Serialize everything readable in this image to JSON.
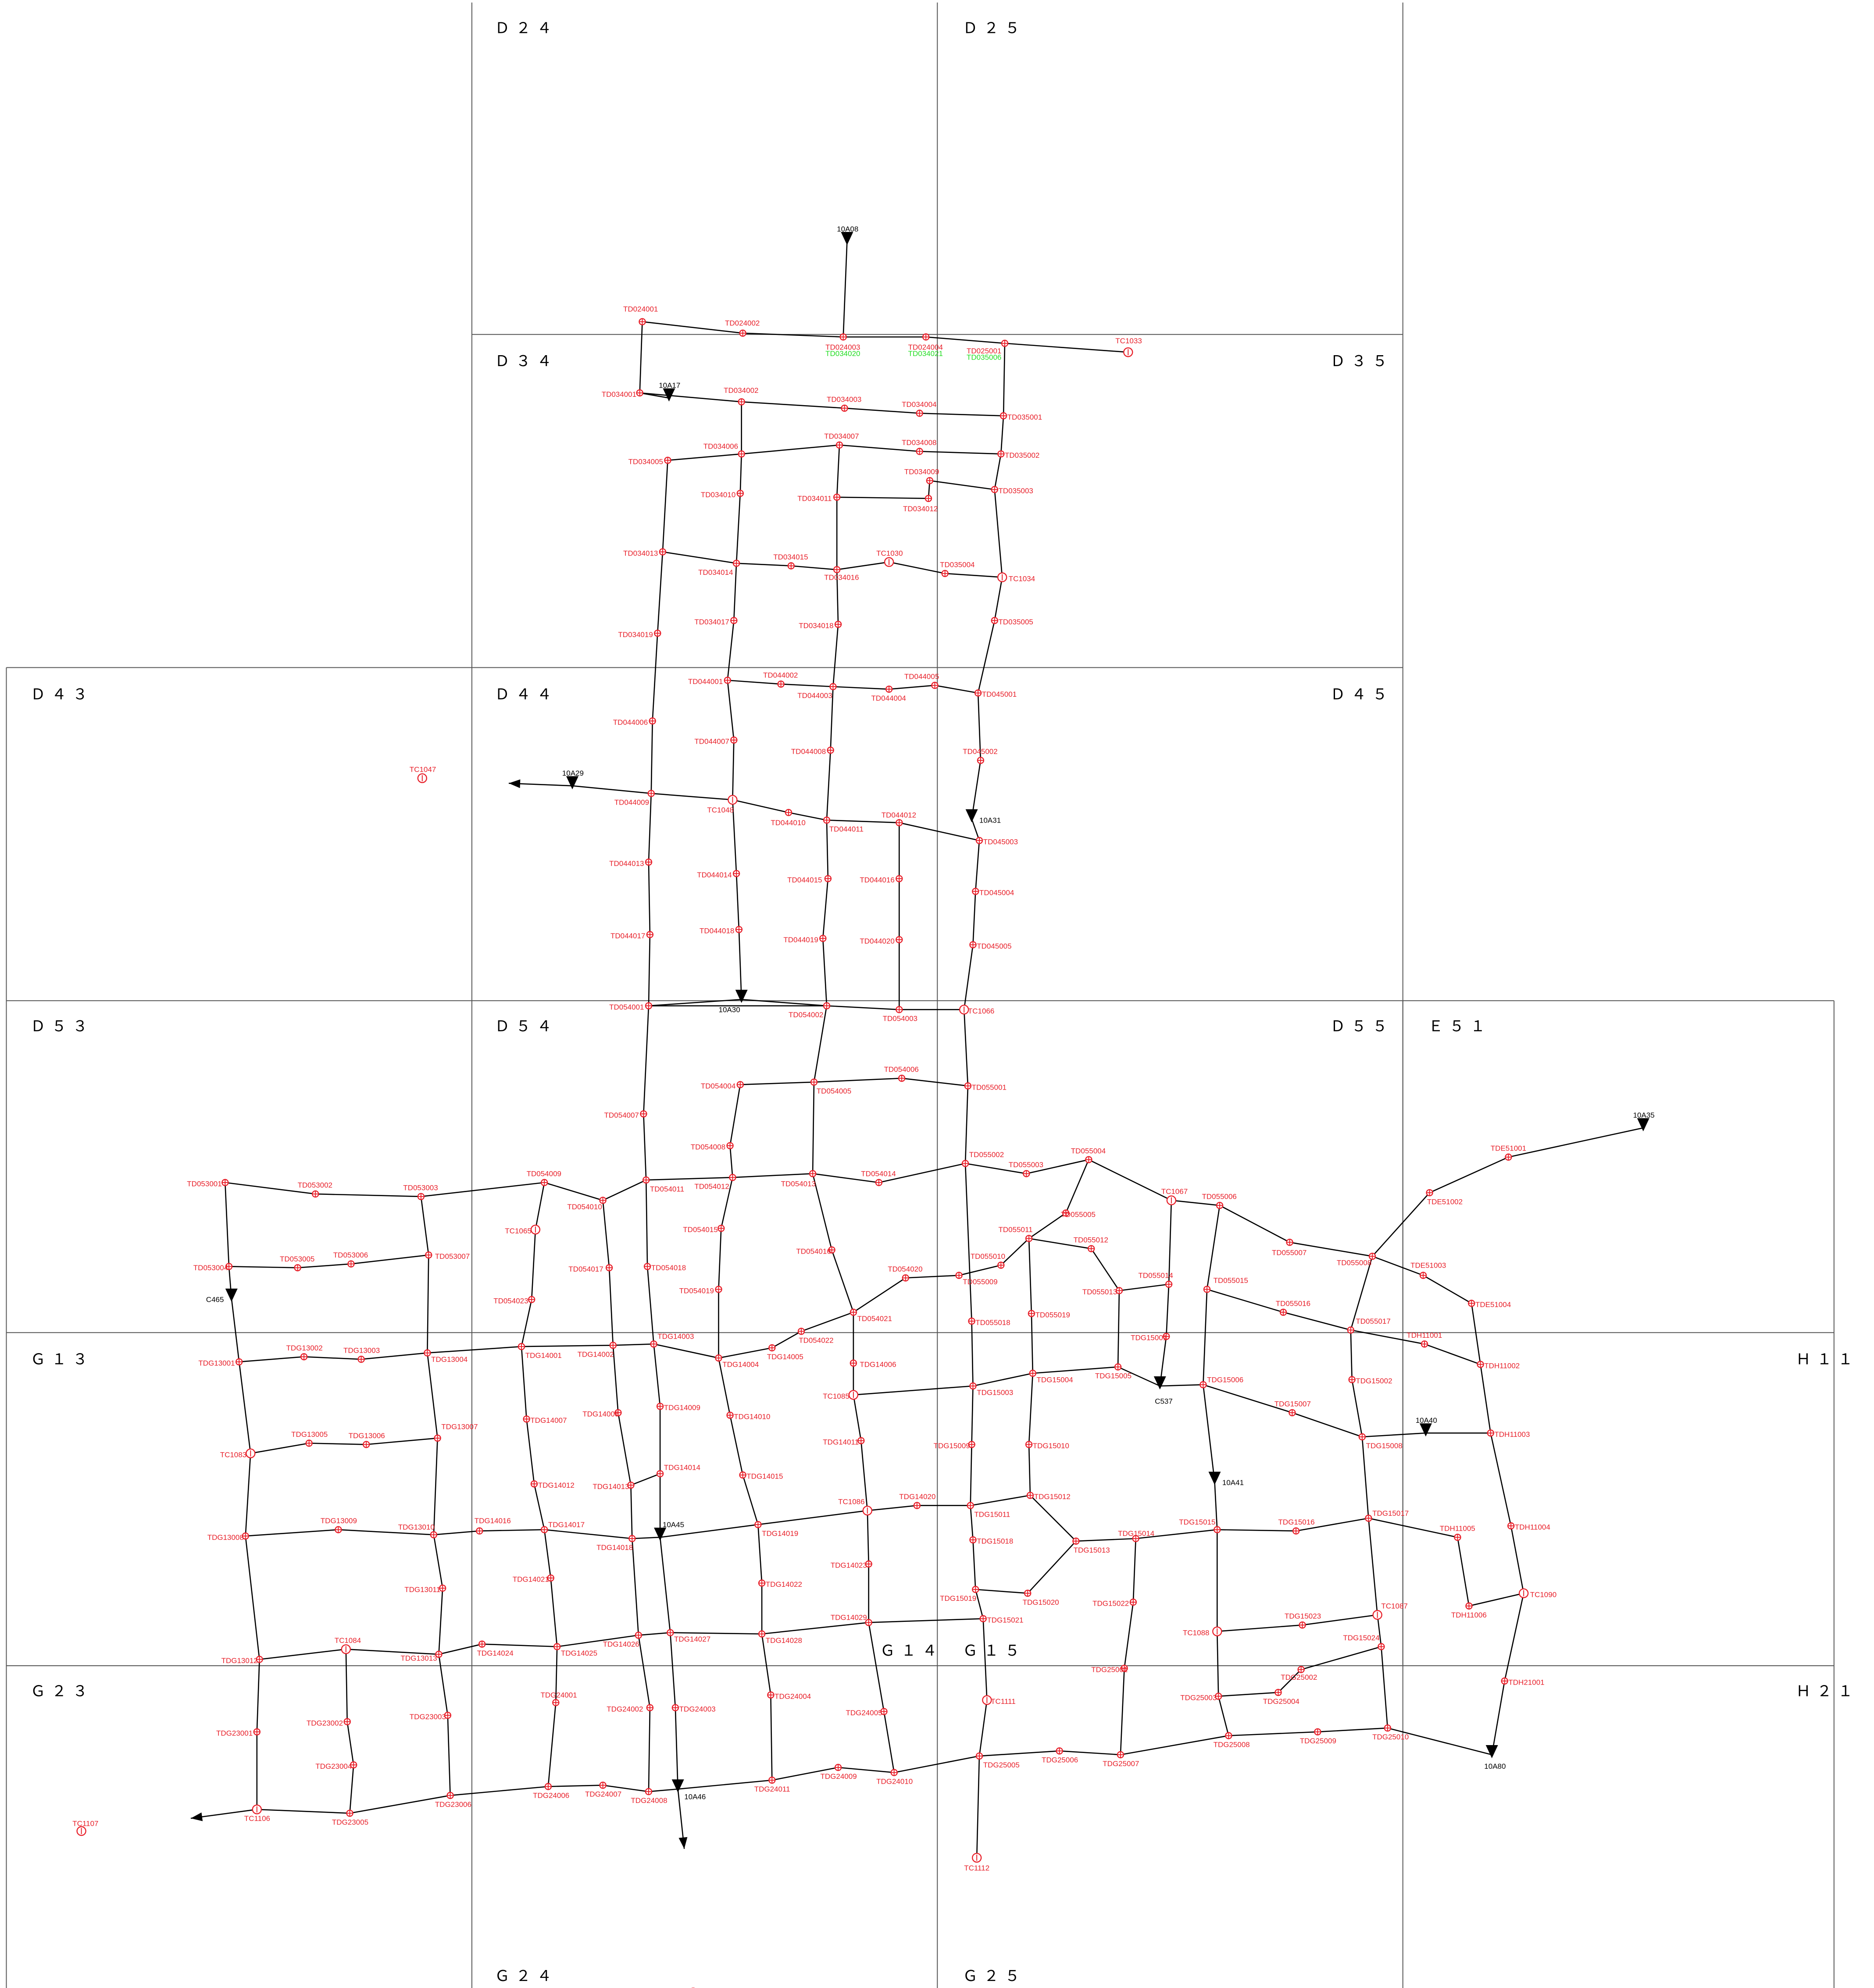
{
  "colors": {
    "node": "#e8202a",
    "alt_label": "#22dd22",
    "pipe": "#000000",
    "grid": "#555555"
  },
  "grid_cells": [
    {
      "id": "D24",
      "label": "Ｄ２４"
    },
    {
      "id": "D25",
      "label": "Ｄ２５"
    },
    {
      "id": "D34",
      "label": "Ｄ３４"
    },
    {
      "id": "D35",
      "label": "Ｄ３５"
    },
    {
      "id": "D43",
      "label": "Ｄ４３"
    },
    {
      "id": "D44",
      "label": "Ｄ４４"
    },
    {
      "id": "D45",
      "label": "Ｄ４５"
    },
    {
      "id": "D53",
      "label": "Ｄ５３"
    },
    {
      "id": "D54",
      "label": "Ｄ５４"
    },
    {
      "id": "D55",
      "label": "Ｄ５５"
    },
    {
      "id": "E51",
      "label": "Ｅ５１"
    },
    {
      "id": "G13",
      "label": "Ｇ１３"
    },
    {
      "id": "H11",
      "label": "Ｈ１１"
    },
    {
      "id": "G14",
      "label": "Ｇ１４"
    },
    {
      "id": "G15",
      "label": "Ｇ１５"
    },
    {
      "id": "G23",
      "label": "Ｇ２３"
    },
    {
      "id": "H21",
      "label": "Ｈ２１"
    },
    {
      "id": "G24",
      "label": "Ｇ２４"
    },
    {
      "id": "G25",
      "label": "Ｇ２５"
    }
  ],
  "nodes": [
    {
      "id": "TD024001",
      "label": "TD024001"
    },
    {
      "id": "TD024002",
      "label": "TD024002"
    },
    {
      "id": "TD024003",
      "label": "TD024003",
      "alt": "TD034020"
    },
    {
      "id": "TD024004",
      "label": "TD024004",
      "alt": "TD034021"
    },
    {
      "id": "TD025001",
      "label": "TD025001",
      "alt": "TD035006"
    },
    {
      "id": "TC1033",
      "label": "TC1033"
    },
    {
      "id": "TD034001",
      "label": "TD034001"
    },
    {
      "id": "TD034002",
      "label": "TD034002"
    },
    {
      "id": "TD034003",
      "label": "TD034003"
    },
    {
      "id": "TD034004",
      "label": "TD034004"
    },
    {
      "id": "TD035001",
      "label": "TD035001"
    },
    {
      "id": "TD034005",
      "label": "TD034005"
    },
    {
      "id": "TD034006",
      "label": "TD034006"
    },
    {
      "id": "TD034007",
      "label": "TD034007"
    },
    {
      "id": "TD034008",
      "label": "TD034008"
    },
    {
      "id": "TD035002",
      "label": "TD035002"
    },
    {
      "id": "TD034009",
      "label": "TD034009"
    },
    {
      "id": "TD034010",
      "label": "TD034010"
    },
    {
      "id": "TD034011",
      "label": "TD034011"
    },
    {
      "id": "TD034012",
      "label": "TD034012"
    },
    {
      "id": "TD035003",
      "label": "TD035003"
    },
    {
      "id": "TD034013",
      "label": "TD034013"
    },
    {
      "id": "TD034014",
      "label": "TD034014"
    },
    {
      "id": "TD034015",
      "label": "TD034015"
    },
    {
      "id": "TD034016",
      "label": "TD034016"
    },
    {
      "id": "TC1030",
      "label": "TC1030"
    },
    {
      "id": "TD035004",
      "label": "TD035004"
    },
    {
      "id": "TC1034",
      "label": "TC1034"
    },
    {
      "id": "TD034017",
      "label": "TD034017"
    },
    {
      "id": "TD034018",
      "label": "TD034018"
    },
    {
      "id": "TD034019",
      "label": "TD034019"
    },
    {
      "id": "TD035005",
      "label": "TD035005"
    },
    {
      "id": "TD044001",
      "label": "TD044001"
    },
    {
      "id": "TD044002",
      "label": "TD044002"
    },
    {
      "id": "TD044003",
      "label": "TD044003"
    },
    {
      "id": "TD044004",
      "label": "TD044004"
    },
    {
      "id": "TD044005",
      "label": "TD044005"
    },
    {
      "id": "TD045001",
      "label": "TD045001"
    },
    {
      "id": "TD044006",
      "label": "TD044006"
    },
    {
      "id": "TD044007",
      "label": "TD044007"
    },
    {
      "id": "TD044008",
      "label": "TD044008"
    },
    {
      "id": "TD045002",
      "label": "TD045002"
    },
    {
      "id": "TC1047",
      "label": "TC1047"
    },
    {
      "id": "TD044009",
      "label": "TD044009"
    },
    {
      "id": "TC1048",
      "label": "TC1048"
    },
    {
      "id": "TD044010",
      "label": "TD044010"
    },
    {
      "id": "TD044011",
      "label": "TD044011"
    },
    {
      "id": "TD044012",
      "label": "TD044012"
    },
    {
      "id": "TD045003",
      "label": "TD045003"
    },
    {
      "id": "TD044013",
      "label": "TD044013"
    },
    {
      "id": "TD044014",
      "label": "TD044014"
    },
    {
      "id": "TD044015",
      "label": "TD044015"
    },
    {
      "id": "TD044016",
      "label": "TD044016"
    },
    {
      "id": "TD045004",
      "label": "TD045004"
    },
    {
      "id": "TD044017",
      "label": "TD044017"
    },
    {
      "id": "TD044018",
      "label": "TD044018"
    },
    {
      "id": "TD044019",
      "label": "TD044019"
    },
    {
      "id": "TD044020",
      "label": "TD044020"
    },
    {
      "id": "TD045005",
      "label": "TD045005"
    },
    {
      "id": "TD054001",
      "label": "TD054001"
    },
    {
      "id": "TD054002",
      "label": "TD054002"
    },
    {
      "id": "TD054003",
      "label": "TD054003"
    },
    {
      "id": "TC1066",
      "label": "TC1066"
    },
    {
      "id": "TD054004",
      "label": "TD054004"
    },
    {
      "id": "TD054005",
      "label": "TD054005"
    },
    {
      "id": "TD054006",
      "label": "TD054006"
    },
    {
      "id": "TD055001",
      "label": "TD055001"
    },
    {
      "id": "TD054007",
      "label": "TD054007"
    },
    {
      "id": "TD054008",
      "label": "TD054008"
    },
    {
      "id": "TD053001",
      "label": "TD053001"
    },
    {
      "id": "TD053002",
      "label": "TD053002"
    },
    {
      "id": "TD053003",
      "label": "TD053003"
    },
    {
      "id": "TD054009",
      "label": "TD054009"
    },
    {
      "id": "TD054010",
      "label": "TD054010"
    },
    {
      "id": "TD054011",
      "label": "TD054011"
    },
    {
      "id": "TD054012",
      "label": "TD054012"
    },
    {
      "id": "TD054013",
      "label": "TD054013"
    },
    {
      "id": "TD054014",
      "label": "TD054014"
    },
    {
      "id": "TD055002",
      "label": "TD055002"
    },
    {
      "id": "TD055003",
      "label": "TD055003"
    },
    {
      "id": "TD055004",
      "label": "TD055004"
    },
    {
      "id": "TC1067",
      "label": "TC1067"
    },
    {
      "id": "TD055006",
      "label": "TD055006"
    },
    {
      "id": "TC1065",
      "label": "TC1065"
    },
    {
      "id": "TD054015",
      "label": "TD054015"
    },
    {
      "id": "TD055005",
      "label": "TD055005"
    },
    {
      "id": "TD055011",
      "label": "TD055011"
    },
    {
      "id": "TD055012",
      "label": "TD055012"
    },
    {
      "id": "TD053004",
      "label": "TD053004"
    },
    {
      "id": "TD053005",
      "label": "TD053005"
    },
    {
      "id": "TD053006",
      "label": "TD053006"
    },
    {
      "id": "TD053007",
      "label": "TD053007"
    },
    {
      "id": "TD054016",
      "label": "TD054016"
    },
    {
      "id": "TD054017",
      "label": "TD054017"
    },
    {
      "id": "TD054018",
      "label": "TD054018"
    },
    {
      "id": "TD055010",
      "label": "TD055010"
    },
    {
      "id": "TD054020",
      "label": "TD054020"
    },
    {
      "id": "TD055009",
      "label": "TD055009"
    },
    {
      "id": "TD055007",
      "label": "TD055007"
    },
    {
      "id": "TD055008",
      "label": "TD055008"
    },
    {
      "id": "TD055013",
      "label": "TD055013"
    },
    {
      "id": "TD055014",
      "label": "TD055014"
    },
    {
      "id": "TD055015",
      "label": "TD055015"
    },
    {
      "id": "TD054019",
      "label": "TD054019"
    },
    {
      "id": "TD054023",
      "label": "TD054023"
    },
    {
      "id": "TD055019",
      "label": "TD055019"
    },
    {
      "id": "TD055016",
      "label": "TD055016"
    },
    {
      "id": "TD054021",
      "label": "TD054021"
    },
    {
      "id": "TD055018",
      "label": "TD055018"
    },
    {
      "id": "TD054022",
      "label": "TD054022"
    },
    {
      "id": "TD055017",
      "label": "TD055017"
    },
    {
      "id": "TDE51001",
      "label": "TDE51001"
    },
    {
      "id": "TDE51002",
      "label": "TDE51002"
    },
    {
      "id": "TDE51003",
      "label": "TDE51003"
    },
    {
      "id": "TDE51004",
      "label": "TDE51004"
    },
    {
      "id": "TDG13001",
      "label": "TDG13001"
    },
    {
      "id": "TDG13002",
      "label": "TDG13002"
    },
    {
      "id": "TDG13003",
      "label": "TDG13003"
    },
    {
      "id": "TDG13004",
      "label": "TDG13004"
    },
    {
      "id": "TDG14001",
      "label": "TDG14001"
    },
    {
      "id": "TDG14002",
      "label": "TDG14002"
    },
    {
      "id": "TDG14003",
      "label": "TDG14003"
    },
    {
      "id": "TDG14004",
      "label": "TDG14004"
    },
    {
      "id": "TDG14005",
      "label": "TDG14005"
    },
    {
      "id": "TDG14006",
      "label": "TDG14006"
    },
    {
      "id": "TDG15001",
      "label": "TDG15001"
    },
    {
      "id": "TDG15005",
      "label": "TDG15005"
    },
    {
      "id": "TDG15004",
      "label": "TDG15004"
    },
    {
      "id": "TDG15006",
      "label": "TDG15006"
    },
    {
      "id": "TDH11001",
      "label": "TDH11001"
    },
    {
      "id": "TDH11002",
      "label": "TDH11002"
    },
    {
      "id": "TDG15002",
      "label": "TDG15002"
    },
    {
      "id": "TC1085",
      "label": "TC1085"
    },
    {
      "id": "TDG15003",
      "label": "TDG15003"
    },
    {
      "id": "TDG14008",
      "label": "TDG14008"
    },
    {
      "id": "TDG14009",
      "label": "TDG14009"
    },
    {
      "id": "TDG14010",
      "label": "TDG14010"
    },
    {
      "id": "TDG14007",
      "label": "TDG14007"
    },
    {
      "id": "TDG13005",
      "label": "TDG13005"
    },
    {
      "id": "TDG13006",
      "label": "TDG13006"
    },
    {
      "id": "TDG13007",
      "label": "TDG13007"
    },
    {
      "id": "TDG15007",
      "label": "TDG15007"
    },
    {
      "id": "TDG15008",
      "label": "TDG15008"
    },
    {
      "id": "TDH11003",
      "label": "TDH11003"
    },
    {
      "id": "TC1083",
      "label": "TC1083"
    },
    {
      "id": "TDG14011",
      "label": "TDG14011"
    },
    {
      "id": "TDG15009",
      "label": "TDG15009"
    },
    {
      "id": "TDG15010",
      "label": "TDG15010"
    },
    {
      "id": "TDG14012",
      "label": "TDG14012"
    },
    {
      "id": "TDG14013",
      "label": "TDG14013"
    },
    {
      "id": "TDG14014",
      "label": "TDG14014"
    },
    {
      "id": "TDG14015",
      "label": "TDG14015"
    },
    {
      "id": "TC1086",
      "label": "TC1086"
    },
    {
      "id": "TDG14020",
      "label": "TDG14020"
    },
    {
      "id": "TDG15011",
      "label": "TDG15011"
    },
    {
      "id": "TDG15012",
      "label": "TDG15012"
    },
    {
      "id": "TDG13008",
      "label": "TDG13008"
    },
    {
      "id": "TDG13009",
      "label": "TDG13009"
    },
    {
      "id": "TDG13010",
      "label": "TDG13010"
    },
    {
      "id": "TDG14016",
      "label": "TDG14016"
    },
    {
      "id": "TDG14017",
      "label": "TDG14017"
    },
    {
      "id": "TDG14018",
      "label": "TDG14018"
    },
    {
      "id": "TDG14019",
      "label": "TDG14019"
    },
    {
      "id": "TDG15018",
      "label": "TDG15018"
    },
    {
      "id": "TDG15013",
      "label": "TDG15013"
    },
    {
      "id": "TDG15014",
      "label": "TDG15014"
    },
    {
      "id": "TDG15015",
      "label": "TDG15015"
    },
    {
      "id": "TDG15016",
      "label": "TDG15016"
    },
    {
      "id": "TDG15017",
      "label": "TDG15017"
    },
    {
      "id": "TDH11004",
      "label": "TDH11004"
    },
    {
      "id": "TDH11005",
      "label": "TDH11005"
    },
    {
      "id": "TDG14021",
      "label": "TDG14021"
    },
    {
      "id": "TDG14022",
      "label": "TDG14022"
    },
    {
      "id": "TDG14023",
      "label": "TDG14023"
    },
    {
      "id": "TDG13011",
      "label": "TDG13011"
    },
    {
      "id": "TDG15019",
      "label": "TDG15019"
    },
    {
      "id": "TDG15020",
      "label": "TDG15020"
    },
    {
      "id": "TDG15022",
      "label": "TDG15022"
    },
    {
      "id": "TC1090",
      "label": "TC1090"
    },
    {
      "id": "TDH11006",
      "label": "TDH11006"
    },
    {
      "id": "TC1087",
      "label": "TC1087"
    },
    {
      "id": "TDG14029",
      "label": "TDG14029"
    },
    {
      "id": "TDG15021",
      "label": "TDG15021"
    },
    {
      "id": "TDG15023",
      "label": "TDG15023"
    },
    {
      "id": "TC1088",
      "label": "TC1088"
    },
    {
      "id": "TDG14027",
      "label": "TDG14027"
    },
    {
      "id": "TDG14028",
      "label": "TDG14028"
    },
    {
      "id": "TDG14026",
      "label": "TDG14026"
    },
    {
      "id": "TC1084",
      "label": "TC1084"
    },
    {
      "id": "TDG14024",
      "label": "TDG14024"
    },
    {
      "id": "TDG14025",
      "label": "TDG14025"
    },
    {
      "id": "TDG13012",
      "label": "TDG13012"
    },
    {
      "id": "TDG13013",
      "label": "TDG13013"
    },
    {
      "id": "TDG15024",
      "label": "TDG15024"
    },
    {
      "id": "TD025001b",
      "label": "TDG25001"
    },
    {
      "id": "TDG25002",
      "label": "TDG25002"
    },
    {
      "id": "TDH21001",
      "label": "TDH21001"
    },
    {
      "id": "TC1111",
      "label": "TC1111"
    },
    {
      "id": "TDG24001",
      "label": "TDG24001"
    },
    {
      "id": "TDG24002",
      "label": "TDG24002"
    },
    {
      "id": "TDG24003",
      "label": "TDG24003"
    },
    {
      "id": "TDG24004",
      "label": "TDG24004"
    },
    {
      "id": "TDG24005",
      "label": "TDG24005"
    },
    {
      "id": "TDG23001",
      "label": "TDG23001"
    },
    {
      "id": "TDG23002",
      "label": "TDG23002"
    },
    {
      "id": "TDG23003",
      "label": "TDG23003"
    },
    {
      "id": "TDG23004",
      "label": "TDG23004"
    },
    {
      "id": "TDG25003",
      "label": "TDG25003"
    },
    {
      "id": "TDG25004",
      "label": "TDG25004"
    },
    {
      "id": "TDG25005",
      "label": "TDG25005"
    },
    {
      "id": "TDG25006",
      "label": "TDG25006"
    },
    {
      "id": "TDG25007",
      "label": "TDG25007"
    },
    {
      "id": "TDG25008",
      "label": "TDG25008"
    },
    {
      "id": "TDG25009",
      "label": "TDG25009"
    },
    {
      "id": "TDG25010",
      "label": "TDG25010"
    },
    {
      "id": "TDG24006",
      "label": "TDG24006"
    },
    {
      "id": "TDG24007",
      "label": "TDG24007"
    },
    {
      "id": "TDG24008",
      "label": "TDG24008"
    },
    {
      "id": "TDG24009",
      "label": "TDG24009"
    },
    {
      "id": "TDG24010",
      "label": "TDG24010"
    },
    {
      "id": "TDG24011",
      "label": "TDG24011"
    },
    {
      "id": "TDG23005",
      "label": "TDG23005"
    },
    {
      "id": "TDG23006",
      "label": "TDG23006"
    },
    {
      "id": "TC1106",
      "label": "TC1106"
    },
    {
      "id": "TC1107",
      "label": "TC1107"
    },
    {
      "id": "TC1112",
      "label": "TC1112"
    },
    {
      "id": "TC1110",
      "label": "TC1110"
    }
  ],
  "outlets": [
    {
      "id": "10A08",
      "label": "10A08"
    },
    {
      "id": "10A17",
      "label": "10A17"
    },
    {
      "id": "10A29",
      "label": "10A29"
    },
    {
      "id": "10A31",
      "label": "10A31"
    },
    {
      "id": "10A30",
      "label": "10A30"
    },
    {
      "id": "10A35",
      "label": "10A35"
    },
    {
      "id": "C465",
      "label": "C465"
    },
    {
      "id": "C537",
      "label": "C537"
    },
    {
      "id": "10A40",
      "label": "10A40"
    },
    {
      "id": "10A41",
      "label": "10A41"
    },
    {
      "id": "10A45",
      "label": "10A45"
    },
    {
      "id": "10A80",
      "label": "10A80"
    },
    {
      "id": "10A46",
      "label": "10A46"
    }
  ]
}
